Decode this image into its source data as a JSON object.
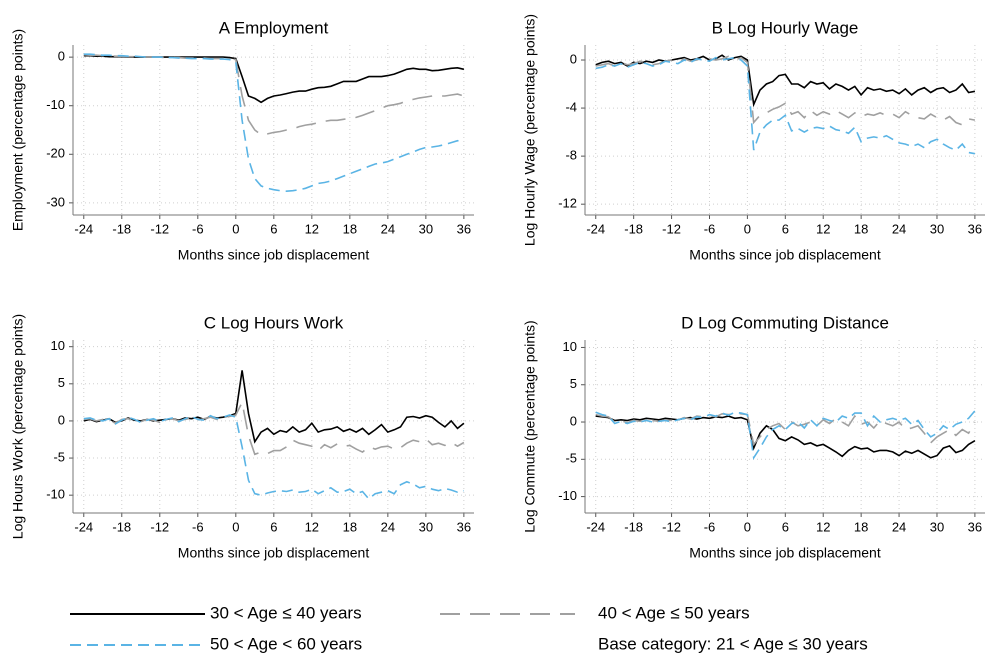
{
  "chart_data": [
    {
      "type": "line",
      "title": "A Employment",
      "xlabel": "Months since job displacement",
      "ylabel": "Employment (percentage points)",
      "x": [
        -24,
        -23,
        -22,
        -21,
        -20,
        -19,
        -18,
        -17,
        -16,
        -15,
        -14,
        -13,
        -12,
        -11,
        -10,
        -9,
        -8,
        -7,
        -6,
        -5,
        -4,
        -3,
        -2,
        -1,
        0,
        1,
        2,
        3,
        4,
        5,
        6,
        7,
        8,
        9,
        10,
        11,
        12,
        13,
        14,
        15,
        16,
        17,
        18,
        19,
        20,
        21,
        22,
        23,
        24,
        25,
        26,
        27,
        28,
        29,
        30,
        31,
        32,
        33,
        34,
        35,
        36
      ],
      "xlim": [
        -25.7,
        37.6
      ],
      "xticks": [
        -24,
        -18,
        -12,
        -6,
        0,
        6,
        12,
        18,
        24,
        30,
        36
      ],
      "ylim": [
        -32.5,
        2.5
      ],
      "yticks": [
        0,
        -10,
        -20,
        -30
      ],
      "grid": true,
      "series": [
        {
          "name": "30 < Age ≤ 40 years",
          "color": "#000000",
          "dash": "solid",
          "values": [
            0.3,
            0.3,
            0.2,
            0.2,
            0.1,
            0.1,
            0.1,
            0,
            0,
            0,
            0,
            0,
            0,
            0,
            0,
            0,
            0,
            0,
            0,
            0,
            0,
            0,
            0,
            -0.1,
            -0.3,
            -4,
            -8,
            -8.5,
            -9.3,
            -8.5,
            -8,
            -7.8,
            -7.5,
            -7.2,
            -7,
            -7,
            -6.6,
            -6.3,
            -6.2,
            -6,
            -5.5,
            -5,
            -5,
            -5,
            -4.5,
            -4,
            -4,
            -4,
            -3.8,
            -3.5,
            -3,
            -2.5,
            -2.3,
            -2.5,
            -2.5,
            -2.8,
            -2.7,
            -2.5,
            -2.3,
            -2.2,
            -2.5
          ]
        },
        {
          "name": "40 < Age ≤ 50 years",
          "color": "#a0a0a0",
          "dash": "long-dash",
          "values": [
            0.5,
            0.4,
            0.4,
            0.3,
            0.3,
            0.2,
            0.2,
            0.1,
            0.1,
            0,
            0,
            0,
            0,
            -0.1,
            -0.1,
            -0.1,
            -0.2,
            -0.2,
            -0.2,
            -0.2,
            -0.3,
            -0.3,
            -0.3,
            -0.3,
            -0.5,
            -8,
            -13,
            -15,
            -16,
            -15.8,
            -15.5,
            -15.3,
            -15,
            -14.8,
            -14.3,
            -14,
            -13.8,
            -13.5,
            -13.2,
            -13,
            -13,
            -12.8,
            -12.6,
            -12.4,
            -12,
            -11.5,
            -11,
            -10.5,
            -10,
            -9.8,
            -9.5,
            -9,
            -8.7,
            -8.4,
            -8.2,
            -8,
            -8,
            -8,
            -7.8,
            -7.6,
            -8
          ]
        },
        {
          "name": "50 < Age < 60 years",
          "color": "#5ab4e5",
          "dash": "dash",
          "values": [
            0.6,
            0.6,
            0.5,
            0.4,
            0.4,
            0.3,
            0.3,
            0.2,
            0.2,
            0.1,
            0,
            0,
            0,
            -0.1,
            -0.1,
            -0.2,
            -0.2,
            -0.3,
            -0.3,
            -0.3,
            -0.4,
            -0.4,
            -0.4,
            -0.5,
            -1,
            -13,
            -21,
            -25,
            -26.5,
            -27,
            -27.3,
            -27.5,
            -27.6,
            -27.5,
            -27.3,
            -27,
            -26.5,
            -26,
            -25.8,
            -25.5,
            -25,
            -24.5,
            -24,
            -23.5,
            -23,
            -22.5,
            -22,
            -21.8,
            -21.5,
            -21,
            -20.5,
            -20,
            -19.5,
            -19,
            -18.6,
            -18.5,
            -18.3,
            -18,
            -17.6,
            -17.2,
            -17.3
          ]
        }
      ]
    },
    {
      "type": "line",
      "title": "B Log Hourly Wage",
      "xlabel": "Months since job displacement",
      "ylabel": "Log Hourly Wage (percentage points)",
      "x": [
        -24,
        -23,
        -22,
        -21,
        -20,
        -19,
        -18,
        -17,
        -16,
        -15,
        -14,
        -13,
        -12,
        -11,
        -10,
        -9,
        -8,
        -7,
        -6,
        -5,
        -4,
        -3,
        -2,
        -1,
        0,
        1,
        2,
        3,
        4,
        5,
        6,
        7,
        8,
        9,
        10,
        11,
        12,
        13,
        14,
        15,
        16,
        17,
        18,
        19,
        20,
        21,
        22,
        23,
        24,
        25,
        26,
        27,
        28,
        29,
        30,
        31,
        32,
        33,
        34,
        35,
        36
      ],
      "xlim": [
        -25.7,
        37.6
      ],
      "xticks": [
        -24,
        -18,
        -12,
        -6,
        0,
        6,
        12,
        18,
        24,
        30,
        36
      ],
      "ylim": [
        -12.9,
        1.25
      ],
      "yticks": [
        0,
        -4,
        -8,
        -12
      ],
      "grid": true,
      "series": [
        {
          "color": "#000000",
          "dash": "solid",
          "values": [
            -0.4,
            -0.2,
            -0.1,
            -0.3,
            -0.2,
            -0.5,
            -0.2,
            -0.3,
            -0.1,
            -0.2,
            0,
            -0.1,
            0,
            0.1,
            0.2,
            0,
            0.1,
            0.3,
            0,
            0.1,
            0.4,
            0,
            0.2,
            0.3,
            0,
            -3.7,
            -2.5,
            -2,
            -1.8,
            -1.3,
            -1.2,
            -2,
            -2,
            -2.3,
            -1.8,
            -2,
            -1.9,
            -2.4,
            -2,
            -2.2,
            -2.5,
            -2.2,
            -2.9,
            -2.3,
            -2.5,
            -2.4,
            -2.6,
            -2.5,
            -2.8,
            -2.4,
            -2.9,
            -2.5,
            -2.3,
            -2.7,
            -2.4,
            -2.3,
            -2.7,
            -2.5,
            -2,
            -2.7,
            -2.6
          ]
        },
        {
          "color": "#a0a0a0",
          "dash": "long-dash",
          "values": [
            -0.5,
            -0.4,
            -0.3,
            -0.5,
            -0.2,
            -0.4,
            -0.3,
            -0.1,
            -0.2,
            -0.4,
            -0.3,
            -0.1,
            0,
            -0.2,
            0.1,
            -0.1,
            0,
            0.2,
            0.1,
            0,
            0.1,
            0.3,
            0,
            0.2,
            -0.2,
            -5.2,
            -4.6,
            -4.4,
            -4.1,
            -3.9,
            -3.6,
            -4.5,
            -4.3,
            -4.8,
            -4.2,
            -4.6,
            -4.3,
            -4.5,
            -4.2,
            -4.5,
            -4.8,
            -4.4,
            -4.7,
            -4.5,
            -4.6,
            -4.4,
            -4.6,
            -4.5,
            -4.8,
            -4.3,
            -4.6,
            -4.8,
            -4.9,
            -4.5,
            -4.8,
            -5,
            -4.7,
            -5.2,
            -5.4,
            -4.9,
            -5
          ]
        },
        {
          "color": "#5ab4e5",
          "dash": "dash",
          "values": [
            -0.7,
            -0.6,
            -0.4,
            -0.5,
            -0.3,
            -0.6,
            -0.4,
            -0.2,
            -0.3,
            -0.5,
            -0.4,
            -0.1,
            -0.2,
            -0.3,
            0,
            -0.2,
            0.1,
            0,
            -0.1,
            0.2,
            0,
            0.1,
            0.2,
            0,
            -0.5,
            -7.5,
            -6,
            -5.4,
            -5,
            -5,
            -4.6,
            -5.9,
            -5.7,
            -6,
            -5.7,
            -5.6,
            -5.7,
            -5.5,
            -5.8,
            -5.9,
            -6.1,
            -5.6,
            -6.8,
            -6.5,
            -6.4,
            -6.5,
            -6.3,
            -6.6,
            -6.9,
            -7,
            -7.2,
            -7,
            -7.3,
            -6.8,
            -6.6,
            -7,
            -7.3,
            -7.5,
            -7,
            -7.7,
            -7.8
          ]
        }
      ]
    },
    {
      "type": "line",
      "title": "C Log Hours Work",
      "xlabel": "Months since job displacement",
      "ylabel": "Log Hours Work (percentage points)",
      "x": [
        -24,
        -23,
        -22,
        -21,
        -20,
        -19,
        -18,
        -17,
        -16,
        -15,
        -14,
        -13,
        -12,
        -11,
        -10,
        -9,
        -8,
        -7,
        -6,
        -5,
        -4,
        -3,
        -2,
        -1,
        0,
        1,
        2,
        3,
        4,
        5,
        6,
        7,
        8,
        9,
        10,
        11,
        12,
        13,
        14,
        15,
        16,
        17,
        18,
        19,
        20,
        21,
        22,
        23,
        24,
        25,
        26,
        27,
        28,
        29,
        30,
        31,
        32,
        33,
        34,
        35,
        36
      ],
      "xlim": [
        -25.7,
        37.6
      ],
      "xticks": [
        -24,
        -18,
        -12,
        -6,
        0,
        6,
        12,
        18,
        24,
        30,
        36
      ],
      "ylim": [
        -12.4,
        10.9
      ],
      "yticks": [
        10,
        5,
        0,
        -5,
        -10
      ],
      "grid": true,
      "series": [
        {
          "color": "#000000",
          "dash": "solid",
          "values": [
            0,
            0.2,
            -0.1,
            0.1,
            0.3,
            -0.2,
            0,
            0.4,
            0.1,
            0,
            0.2,
            0,
            0.1,
            0.2,
            0.3,
            0.1,
            0.4,
            0.3,
            0.5,
            0.2,
            0.6,
            0.4,
            0.5,
            0.7,
            1,
            6.8,
            1,
            -2.8,
            -1.5,
            -1,
            -1.8,
            -1.3,
            -1.5,
            -0.8,
            -1.5,
            -1.2,
            -0.3,
            -1.5,
            -1.2,
            -1.1,
            -0.8,
            -1.4,
            -1.1,
            -1.5,
            -1,
            -1.8,
            -1.2,
            -0.5,
            -1.5,
            -1.2,
            -0.8,
            0.5,
            0.6,
            0.4,
            0.7,
            0.5,
            -0.2,
            -0.8,
            0,
            -1,
            -0.3
          ]
        },
        {
          "color": "#a0a0a0",
          "dash": "long-dash",
          "values": [
            0.2,
            0.3,
            0,
            0.2,
            0.1,
            -0.3,
            0.2,
            0.3,
            0,
            -0.1,
            0.2,
            0.1,
            -0.2,
            0.1,
            0.3,
            0,
            0.2,
            0.4,
            0.1,
            0.3,
            0.5,
            0.2,
            0.4,
            0.6,
            0.8,
            2.5,
            -2,
            -4.5,
            -4.2,
            -4.4,
            -4,
            -4,
            -3.5,
            -2.6,
            -3,
            -3.2,
            -3.4,
            -4,
            -3.2,
            -3.6,
            -3.1,
            -3.4,
            -3.3,
            -3.8,
            -4.2,
            -3.5,
            -3.8,
            -3.5,
            -3.4,
            -3.8,
            -3.6,
            -3,
            -2.6,
            -2.8,
            -2.4,
            -3.2,
            -3,
            -3.3,
            -2.9,
            -3.4,
            -2.9
          ]
        },
        {
          "color": "#5ab4e5",
          "dash": "dash",
          "values": [
            0.3,
            0.4,
            0.1,
            0,
            0.3,
            -0.4,
            0.1,
            0.5,
            0.2,
            -0.2,
            0.1,
            0.3,
            -0.1,
            0.2,
            0.4,
            -0.1,
            0.3,
            0.6,
            0.2,
            0.1,
            0.7,
            0.3,
            0.5,
            0.8,
            0.5,
            -3.5,
            -8,
            -9.8,
            -10,
            -9.7,
            -9.5,
            -9.4,
            -9.5,
            -9.3,
            -9.6,
            -9.5,
            -9.2,
            -9.8,
            -9.4,
            -9,
            -9.6,
            -9.5,
            -9.2,
            -9.8,
            -9.5,
            -10.5,
            -9.8,
            -9.6,
            -9.4,
            -9.8,
            -8.6,
            -8.2,
            -8.5,
            -9,
            -8.8,
            -9.2,
            -9.4,
            -9.1,
            -9.3,
            -9.6,
            -9.4
          ]
        }
      ]
    },
    {
      "type": "line",
      "title": "D Log Commuting Distance",
      "xlabel": "Months since job displacement",
      "ylabel": "Log Commute (percentage points)",
      "x": [
        -24,
        -23,
        -22,
        -21,
        -20,
        -19,
        -18,
        -17,
        -16,
        -15,
        -14,
        -13,
        -12,
        -11,
        -10,
        -9,
        -8,
        -7,
        -6,
        -5,
        -4,
        -3,
        -2,
        -1,
        0,
        1,
        2,
        3,
        4,
        5,
        6,
        7,
        8,
        9,
        10,
        11,
        12,
        13,
        14,
        15,
        16,
        17,
        18,
        19,
        20,
        21,
        22,
        23,
        24,
        25,
        26,
        27,
        28,
        29,
        30,
        31,
        32,
        33,
        34,
        35,
        36
      ],
      "xlim": [
        -25.7,
        37.6
      ],
      "xticks": [
        -24,
        -18,
        -12,
        -6,
        0,
        6,
        12,
        18,
        24,
        30,
        36
      ],
      "ylim": [
        -12.2,
        11
      ],
      "yticks": [
        10,
        5,
        0,
        -5,
        -10
      ],
      "grid": true,
      "series": [
        {
          "color": "#000000",
          "dash": "solid",
          "values": [
            0.8,
            0.7,
            0.6,
            0.2,
            0.3,
            0.2,
            0.4,
            0.3,
            0.5,
            0.4,
            0.3,
            0.5,
            0.4,
            0.3,
            0.5,
            0.6,
            0.4,
            0.6,
            0.5,
            0.7,
            0.6,
            0.8,
            0.5,
            0.6,
            0.3,
            -3.5,
            -1.5,
            -0.5,
            -1,
            -2.2,
            -2.5,
            -2,
            -2.4,
            -3,
            -2.8,
            -3.2,
            -3,
            -3.5,
            -4,
            -4.6,
            -3.8,
            -3.3,
            -3.6,
            -3.5,
            -4,
            -3.8,
            -3.8,
            -4,
            -4.5,
            -3.9,
            -4.2,
            -3.8,
            -4.3,
            -4.8,
            -4.5,
            -3.5,
            -3.2,
            -4.1,
            -3.8,
            -3,
            -2.5
          ]
        },
        {
          "color": "#a0a0a0",
          "dash": "long-dash",
          "values": [
            1,
            0.8,
            0.7,
            0,
            0.2,
            -0.1,
            0.2,
            0.1,
            0.3,
            0.2,
            0.1,
            0.3,
            0.2,
            0.3,
            0.6,
            0.4,
            0.8,
            0.7,
            0.9,
            0.7,
            1.1,
            1,
            1.2,
            1.1,
            1,
            -3,
            -2,
            -1,
            -0.5,
            -0.2,
            -1,
            0,
            -0.5,
            -0.3,
            0,
            -0.5,
            0.3,
            -0.2,
            0.5,
            0,
            -0.5,
            0.8,
            -0.3,
            0,
            -0.8,
            0.2,
            -0.2,
            -0.5,
            0,
            -1,
            -0.8,
            -0.5,
            -1.5,
            -2.8,
            -2,
            -1.5,
            -1,
            -1.8,
            -1,
            -1.5,
            0
          ]
        },
        {
          "color": "#5ab4e5",
          "dash": "dash",
          "values": [
            1.3,
            1,
            0.8,
            -0.2,
            0.1,
            -0.2,
            0.1,
            0,
            0.2,
            0,
            0.1,
            0.2,
            0,
            0.3,
            0.5,
            0.3,
            0.7,
            0.6,
            1,
            0.8,
            1.2,
            0.9,
            1.3,
            1.2,
            1,
            -4.8,
            -3.5,
            -2,
            -1,
            -0.5,
            -1,
            -0.2,
            0,
            -0.8,
            0.3,
            -0.5,
            0.5,
            0.2,
            0,
            0.8,
            0.5,
            1.2,
            1.2,
            -0.5,
            0.8,
            0,
            0.3,
            0.5,
            0.2,
            0.5,
            -0.3,
            0.2,
            -1,
            -2,
            -1.5,
            -0.5,
            -1,
            -0.3,
            0,
            0.5,
            1.5
          ]
        }
      ]
    }
  ],
  "legend_note": "Base category: 21 < Age ≤ 30 years"
}
